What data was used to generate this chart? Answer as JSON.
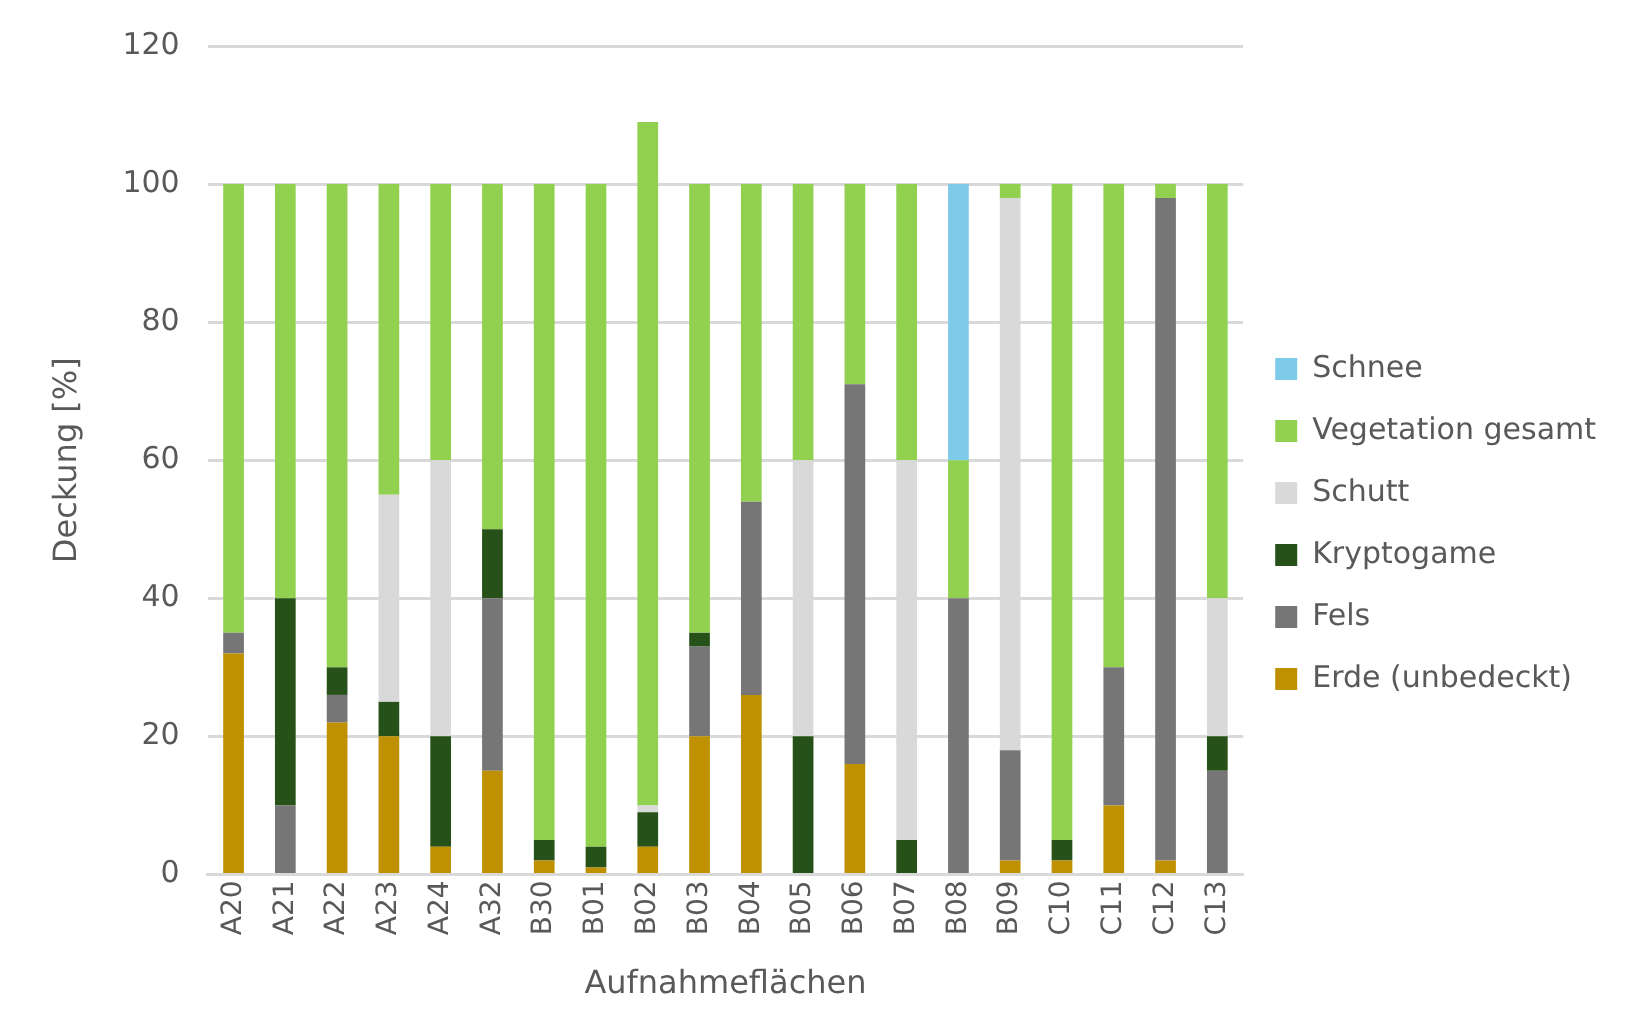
{
  "chart_data": {
    "type": "bar",
    "stacked": true,
    "xlabel": "Aufnahmeflächen",
    "ylabel": "Deckung [%]",
    "categories": [
      "A20",
      "A21",
      "A22",
      "A23",
      "A24",
      "A32",
      "B30",
      "B01",
      "B02",
      "B03",
      "B04",
      "B05",
      "B06",
      "B07",
      "B08",
      "B09",
      "C10",
      "C11",
      "C12",
      "C13"
    ],
    "series": [
      {
        "name": "Erde (unbedeckt)",
        "color": "#bf9000",
        "values": [
          32,
          0,
          22,
          20,
          4,
          15,
          2,
          1,
          4,
          20,
          26,
          0,
          16,
          0,
          0,
          2,
          2,
          10,
          2,
          0
        ]
      },
      {
        "name": "Fels",
        "color": "#767676",
        "values": [
          3,
          10,
          4,
          0,
          0,
          25,
          0,
          0,
          0,
          13,
          28,
          0,
          55,
          0,
          40,
          16,
          0,
          20,
          96,
          15
        ]
      },
      {
        "name": "Kryptogame",
        "color": "#265219",
        "values": [
          0,
          30,
          4,
          5,
          16,
          10,
          3,
          3,
          5,
          2,
          0,
          20,
          0,
          5,
          0,
          0,
          3,
          0,
          0,
          5
        ]
      },
      {
        "name": "Schutt",
        "color": "#d9d9d9",
        "values": [
          0,
          0,
          0,
          30,
          40,
          0,
          0,
          0,
          1,
          0,
          0,
          40,
          0,
          55,
          0,
          80,
          0,
          0,
          0,
          20
        ]
      },
      {
        "name": "Vegetation gesamt",
        "color": "#92d050",
        "values": [
          65,
          60,
          70,
          45,
          40,
          50,
          95,
          96,
          99,
          65,
          46,
          40,
          29,
          40,
          20,
          2,
          95,
          70,
          2,
          60
        ]
      },
      {
        "name": "Schnee",
        "color": "#7ecae9",
        "values": [
          0,
          0,
          0,
          0,
          0,
          0,
          0,
          0,
          0,
          0,
          0,
          0,
          0,
          0,
          40,
          0,
          0,
          0,
          0,
          0
        ]
      }
    ],
    "ylim": [
      0,
      120
    ],
    "yticks": [
      0,
      20,
      40,
      60,
      80,
      100,
      120
    ],
    "grid": "y",
    "legend": "right"
  }
}
